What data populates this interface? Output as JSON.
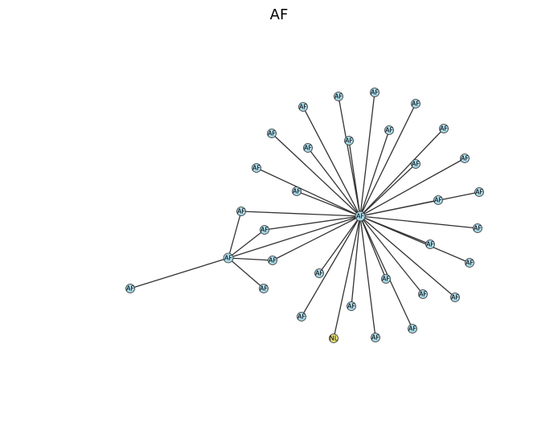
{
  "title": "AF",
  "colors": {
    "node_default": "#a8d8e8",
    "node_highlight": "#e6e27a",
    "edge": "#333333"
  },
  "nodes": [
    {
      "id": "hub",
      "label": "AF",
      "type": "default"
    },
    {
      "id": "sub",
      "label": "AF",
      "type": "default"
    },
    {
      "id": "n1",
      "label": "AF",
      "type": "default"
    },
    {
      "id": "n2",
      "label": "AF",
      "type": "default"
    },
    {
      "id": "n3",
      "label": "AF",
      "type": "default"
    },
    {
      "id": "n4",
      "label": "AF",
      "type": "default"
    },
    {
      "id": "n5",
      "label": "AF",
      "type": "default"
    },
    {
      "id": "n6",
      "label": "AF",
      "type": "default"
    },
    {
      "id": "n7",
      "label": "AF",
      "type": "default"
    },
    {
      "id": "n8",
      "label": "AF",
      "type": "default"
    },
    {
      "id": "n9",
      "label": "AF",
      "type": "default"
    },
    {
      "id": "n10",
      "label": "AF",
      "type": "default"
    },
    {
      "id": "n11",
      "label": "AF",
      "type": "default"
    },
    {
      "id": "n12",
      "label": "AF",
      "type": "default"
    },
    {
      "id": "n13",
      "label": "AF",
      "type": "default"
    },
    {
      "id": "n14",
      "label": "AF",
      "type": "default"
    },
    {
      "id": "n15",
      "label": "AF",
      "type": "default"
    },
    {
      "id": "n16",
      "label": "AF",
      "type": "default"
    },
    {
      "id": "n17",
      "label": "AF",
      "type": "default"
    },
    {
      "id": "n18",
      "label": "AF",
      "type": "default"
    },
    {
      "id": "n19",
      "label": "AF",
      "type": "default"
    },
    {
      "id": "n20",
      "label": "AF",
      "type": "default"
    },
    {
      "id": "n21",
      "label": "AF",
      "type": "default"
    },
    {
      "id": "n22",
      "label": "AF",
      "type": "default"
    },
    {
      "id": "n23",
      "label": "AF",
      "type": "default"
    },
    {
      "id": "n24",
      "label": "AF",
      "type": "default"
    },
    {
      "id": "n25",
      "label": "AF",
      "type": "default"
    },
    {
      "id": "n26",
      "label": "AF",
      "type": "default"
    },
    {
      "id": "n27",
      "label": "AF",
      "type": "default"
    },
    {
      "id": "n28",
      "label": "AF",
      "type": "default"
    },
    {
      "id": "nl",
      "label": "NL",
      "type": "highlight"
    },
    {
      "id": "n29",
      "label": "AF",
      "type": "default"
    },
    {
      "id": "n30",
      "label": "AF",
      "type": "default"
    },
    {
      "id": "n31",
      "label": "AF",
      "type": "default"
    },
    {
      "id": "n32",
      "label": "AF",
      "type": "default"
    }
  ],
  "edges": [
    [
      "hub",
      "n1"
    ],
    [
      "hub",
      "n2"
    ],
    [
      "hub",
      "n3"
    ],
    [
      "hub",
      "n4"
    ],
    [
      "hub",
      "n5"
    ],
    [
      "hub",
      "n6"
    ],
    [
      "hub",
      "n7"
    ],
    [
      "hub",
      "n8"
    ],
    [
      "hub",
      "n9"
    ],
    [
      "hub",
      "n10"
    ],
    [
      "hub",
      "n11"
    ],
    [
      "hub",
      "n12"
    ],
    [
      "hub",
      "n13"
    ],
    [
      "hub",
      "n14"
    ],
    [
      "hub",
      "n15"
    ],
    [
      "hub",
      "n16"
    ],
    [
      "hub",
      "n17"
    ],
    [
      "hub",
      "n18"
    ],
    [
      "hub",
      "n19"
    ],
    [
      "hub",
      "n20"
    ],
    [
      "hub",
      "n21"
    ],
    [
      "hub",
      "n22"
    ],
    [
      "hub",
      "n23"
    ],
    [
      "hub",
      "n25"
    ],
    [
      "hub",
      "n26"
    ],
    [
      "hub",
      "n27"
    ],
    [
      "hub",
      "n28"
    ],
    [
      "hub",
      "nl"
    ],
    [
      "hub",
      "n29"
    ],
    [
      "hub",
      "n30"
    ],
    [
      "hub",
      "sub"
    ],
    [
      "sub",
      "n24"
    ],
    [
      "sub",
      "n25"
    ],
    [
      "sub",
      "n27"
    ],
    [
      "sub",
      "n26"
    ],
    [
      "sub",
      "n32"
    ]
  ]
}
